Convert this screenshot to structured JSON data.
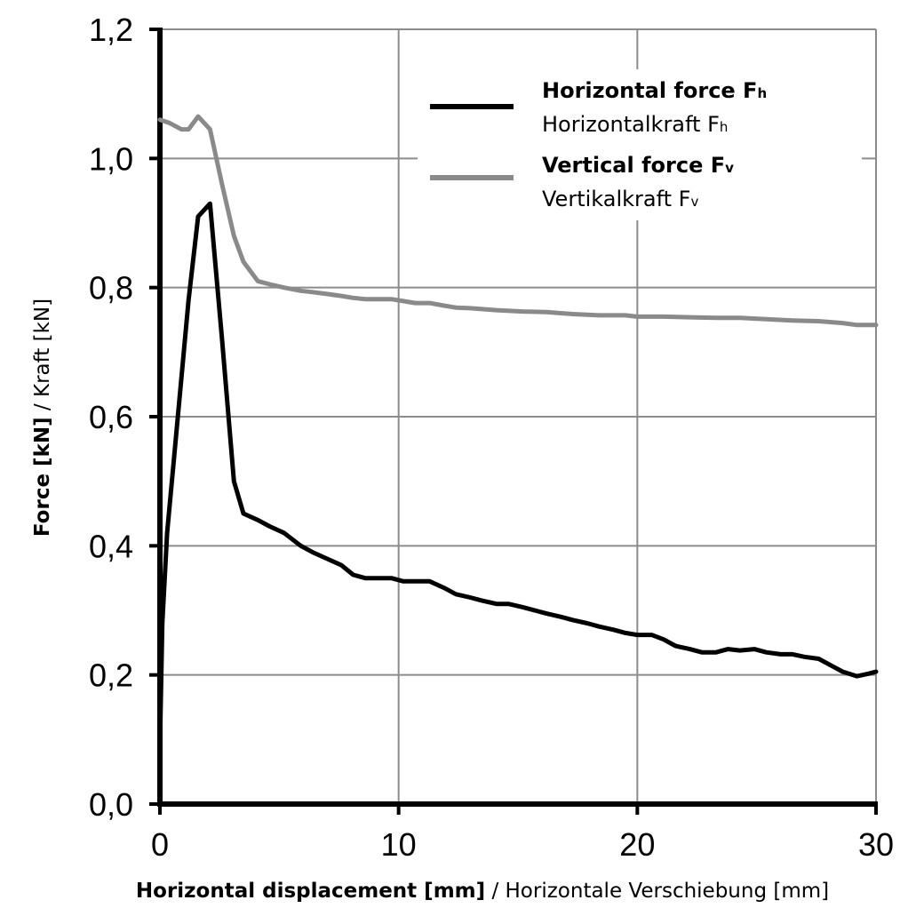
{
  "chart_data": {
    "type": "line",
    "xlabel_bold": "Horizontal displacement [mm]",
    "xlabel_rest": " / Horizontale Verschiebung [mm]",
    "ylabel_bold": "Force [kN]",
    "ylabel_rest": " / Kraft [kN]",
    "xlim": [
      0,
      30
    ],
    "ylim": [
      0,
      1.2
    ],
    "x_ticks": [
      0,
      10,
      20,
      30
    ],
    "x_tick_labels": [
      "0",
      "10",
      "20",
      "30"
    ],
    "y_ticks": [
      0,
      0.2,
      0.4,
      0.6,
      0.8,
      1.0,
      1.2
    ],
    "y_tick_labels": [
      "0,0",
      "0,2",
      "0,4",
      "0,6",
      "0,8",
      "1,0",
      "1,2"
    ],
    "grid": true,
    "legend_position": "top-right",
    "colors": {
      "horizontal": "#000000",
      "vertical": "#8a8a8a",
      "grid": "#8c8c8c"
    },
    "series": [
      {
        "name_bold": "Horizontal force F",
        "name_bold_sub": "h",
        "name_rest": "Horizontalkraft F",
        "name_rest_sub": "h",
        "color": "#000000",
        "x": [
          0,
          0.1,
          0.3,
          0.8,
          1.2,
          1.6,
          2.1,
          2.6,
          3.1,
          3.5,
          4.1,
          4.6,
          5.2,
          5.9,
          6.4,
          7.0,
          7.6,
          8.1,
          8.6,
          9.1,
          9.7,
          10.2,
          10.7,
          11.3,
          11.9,
          12.4,
          13.0,
          13.5,
          14.1,
          14.6,
          15.2,
          15.7,
          16.2,
          16.8,
          17.3,
          17.9,
          18.4,
          19.0,
          19.5,
          20.0,
          20.6,
          21.1,
          21.6,
          22.2,
          22.7,
          23.3,
          23.8,
          24.3,
          24.9,
          25.4,
          26.0,
          26.5,
          27.0,
          27.6,
          28.1,
          28.6,
          29.2,
          29.7,
          30.0
        ],
        "y": [
          0.09,
          0.28,
          0.42,
          0.62,
          0.78,
          0.91,
          0.93,
          0.72,
          0.5,
          0.45,
          0.44,
          0.43,
          0.42,
          0.4,
          0.39,
          0.38,
          0.37,
          0.355,
          0.35,
          0.35,
          0.35,
          0.345,
          0.345,
          0.345,
          0.335,
          0.325,
          0.32,
          0.315,
          0.31,
          0.31,
          0.305,
          0.3,
          0.295,
          0.29,
          0.285,
          0.28,
          0.275,
          0.27,
          0.265,
          0.262,
          0.262,
          0.255,
          0.245,
          0.24,
          0.235,
          0.235,
          0.24,
          0.238,
          0.24,
          0.235,
          0.232,
          0.232,
          0.228,
          0.225,
          0.215,
          0.205,
          0.198,
          0.202,
          0.205
        ]
      },
      {
        "name_bold": "Vertical force F",
        "name_bold_sub": "v",
        "name_rest": "Vertikalkraft F",
        "name_rest_sub": "v",
        "color": "#8a8a8a",
        "x": [
          0,
          0.4,
          0.9,
          1.2,
          1.6,
          2.1,
          2.6,
          3.1,
          3.5,
          4.1,
          4.6,
          5.2,
          5.9,
          6.4,
          7.0,
          7.6,
          8.1,
          8.6,
          9.1,
          9.7,
          10.2,
          10.7,
          11.3,
          11.9,
          12.4,
          13.0,
          14.1,
          15.2,
          16.2,
          17.3,
          18.4,
          19.5,
          20.0,
          21.1,
          22.2,
          23.3,
          24.3,
          25.4,
          26.5,
          27.6,
          28.6,
          29.2,
          30.0
        ],
        "y": [
          1.06,
          1.055,
          1.045,
          1.045,
          1.065,
          1.045,
          0.96,
          0.88,
          0.84,
          0.81,
          0.805,
          0.8,
          0.795,
          0.793,
          0.79,
          0.787,
          0.784,
          0.782,
          0.782,
          0.782,
          0.779,
          0.776,
          0.776,
          0.772,
          0.769,
          0.768,
          0.765,
          0.763,
          0.762,
          0.759,
          0.757,
          0.757,
          0.755,
          0.755,
          0.754,
          0.753,
          0.753,
          0.751,
          0.749,
          0.748,
          0.745,
          0.742,
          0.742
        ]
      }
    ]
  }
}
